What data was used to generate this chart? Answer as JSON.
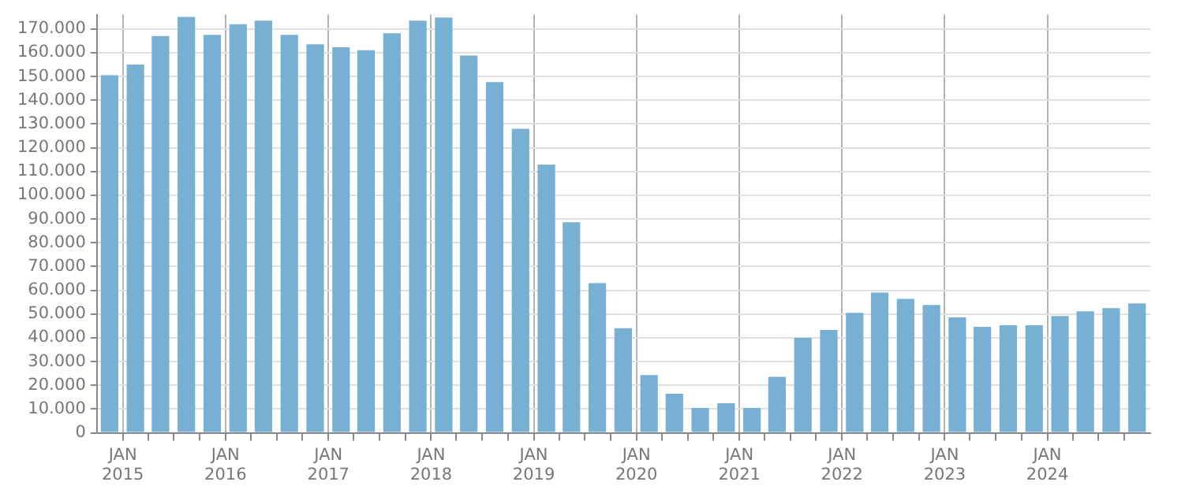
{
  "chart_data": {
    "type": "bar",
    "color": "#78b0d3",
    "x": [
      "2014-11-15",
      "2015-02-15",
      "2015-05-15",
      "2015-08-15",
      "2015-11-15",
      "2016-02-15",
      "2016-05-15",
      "2016-08-15",
      "2016-11-15",
      "2017-02-15",
      "2017-05-15",
      "2017-08-15",
      "2017-11-15",
      "2018-02-15",
      "2018-05-15",
      "2018-08-15",
      "2018-11-15",
      "2019-02-15",
      "2019-05-15",
      "2019-08-15",
      "2019-11-15",
      "2020-02-15",
      "2020-05-15",
      "2020-08-15",
      "2020-11-15",
      "2021-02-15",
      "2021-05-15",
      "2021-08-15",
      "2021-11-15",
      "2022-02-15",
      "2022-05-15",
      "2022-08-15",
      "2022-11-15",
      "2023-02-15",
      "2023-05-15",
      "2023-08-15",
      "2023-11-15",
      "2024-02-15",
      "2024-05-15",
      "2024-08-15",
      "2024-11-15"
    ],
    "values": [
      150500,
      155000,
      167000,
      175000,
      167500,
      172000,
      173500,
      167500,
      163500,
      162300,
      161000,
      168200,
      173500,
      174800,
      158800,
      147600,
      128000,
      112900,
      88600,
      63000,
      44000,
      24300,
      16400,
      10500,
      12500,
      10500,
      23600,
      40000,
      43300,
      50500,
      59000,
      56400,
      53800,
      48600,
      44600,
      45300,
      45300,
      49200,
      51200,
      52500,
      54500
    ],
    "xlim": [
      "2014-10-01",
      "2025-01-01"
    ],
    "xticks": [
      {
        "value": "2015-01-01",
        "label": "JAN\n2015"
      },
      {
        "value": "2015-04-01",
        "label": null
      },
      {
        "value": "2015-07-01",
        "label": null
      },
      {
        "value": "2015-10-01",
        "label": null
      },
      {
        "value": "2016-01-01",
        "label": "JAN\n2016"
      },
      {
        "value": "2016-04-01",
        "label": null
      },
      {
        "value": "2016-07-01",
        "label": null
      },
      {
        "value": "2016-10-01",
        "label": null
      },
      {
        "value": "2017-01-01",
        "label": "JAN\n2017"
      },
      {
        "value": "2017-04-01",
        "label": null
      },
      {
        "value": "2017-07-01",
        "label": null
      },
      {
        "value": "2017-10-01",
        "label": null
      },
      {
        "value": "2018-01-01",
        "label": "JAN\n2018"
      },
      {
        "value": "2018-04-01",
        "label": null
      },
      {
        "value": "2018-07-01",
        "label": null
      },
      {
        "value": "2018-10-01",
        "label": null
      },
      {
        "value": "2019-01-01",
        "label": "JAN\n2019"
      },
      {
        "value": "2019-04-01",
        "label": null
      },
      {
        "value": "2019-07-01",
        "label": null
      },
      {
        "value": "2019-10-01",
        "label": null
      },
      {
        "value": "2020-01-01",
        "label": "JAN\n2020"
      },
      {
        "value": "2020-04-01",
        "label": null
      },
      {
        "value": "2020-07-01",
        "label": null
      },
      {
        "value": "2020-10-01",
        "label": null
      },
      {
        "value": "2021-01-01",
        "label": "JAN\n2021"
      },
      {
        "value": "2021-04-01",
        "label": null
      },
      {
        "value": "2021-07-01",
        "label": null
      },
      {
        "value": "2021-10-01",
        "label": null
      },
      {
        "value": "2022-01-01",
        "label": "JAN\n2022"
      },
      {
        "value": "2022-04-01",
        "label": null
      },
      {
        "value": "2022-07-01",
        "label": null
      },
      {
        "value": "2022-10-01",
        "label": null
      },
      {
        "value": "2023-01-01",
        "label": "JAN\n2023"
      },
      {
        "value": "2023-04-01",
        "label": null
      },
      {
        "value": "2023-07-01",
        "label": null
      },
      {
        "value": "2023-10-01",
        "label": null
      },
      {
        "value": "2024-01-01",
        "label": "JAN\n2024"
      },
      {
        "value": "2024-04-01",
        "label": null
      },
      {
        "value": "2024-07-01",
        "label": null
      },
      {
        "value": "2024-10-01",
        "label": null
      }
    ],
    "ylim": [
      0,
      176000
    ],
    "yticks": [
      {
        "value": 0,
        "label": "0"
      },
      {
        "value": 10000,
        "label": "10.000"
      },
      {
        "value": 20000,
        "label": "20.000"
      },
      {
        "value": 30000,
        "label": "30.000"
      },
      {
        "value": 40000,
        "label": "40.000"
      },
      {
        "value": 50000,
        "label": "50.000"
      },
      {
        "value": 60000,
        "label": "60.000"
      },
      {
        "value": 70000,
        "label": "70.000"
      },
      {
        "value": 80000,
        "label": "80.000"
      },
      {
        "value": 90000,
        "label": "90.000"
      },
      {
        "value": 100000,
        "label": "100.000"
      },
      {
        "value": 110000,
        "label": "110.000"
      },
      {
        "value": 120000,
        "label": "120.000"
      },
      {
        "value": 130000,
        "label": "130.000"
      },
      {
        "value": 140000,
        "label": "140.000"
      },
      {
        "value": 150000,
        "label": "150.000"
      },
      {
        "value": 160000,
        "label": "160.000"
      },
      {
        "value": 170000,
        "label": "170.000"
      }
    ],
    "grid": true,
    "legend": false
  }
}
